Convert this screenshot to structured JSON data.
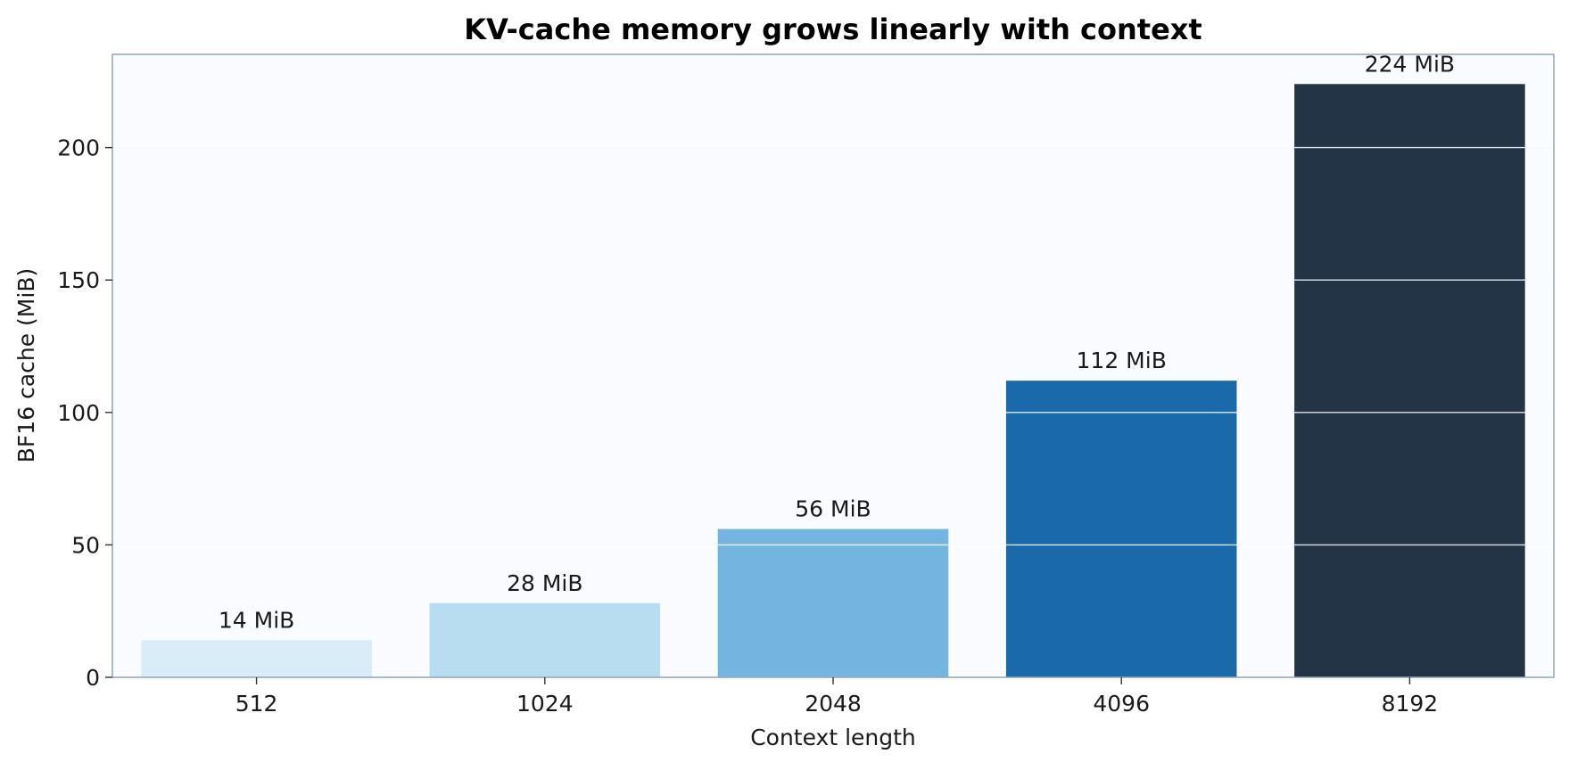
{
  "chart_data": {
    "type": "bar",
    "title": "KV-cache memory grows linearly with context",
    "xlabel": "Context length",
    "ylabel": "BF16 cache (MiB)",
    "categories": [
      "512",
      "1024",
      "2048",
      "4096",
      "8192"
    ],
    "values": [
      14,
      28,
      56,
      112,
      224
    ],
    "data_labels": [
      "14 MiB",
      "28 MiB",
      "56 MiB",
      "112 MiB",
      "224 MiB"
    ],
    "bar_colors": [
      "#d8edf8",
      "#b8ddf0",
      "#73b5e0",
      "#1a6aab",
      "#233447"
    ],
    "ylim": [
      0,
      235.2
    ],
    "yticks": [
      0,
      50,
      100,
      150,
      200
    ],
    "grid": "horizontal",
    "legend": "none",
    "colors": {
      "plot_background": "#f9fbfe",
      "frame": "#8fa5b5",
      "gridline": "#d4dee8"
    }
  }
}
